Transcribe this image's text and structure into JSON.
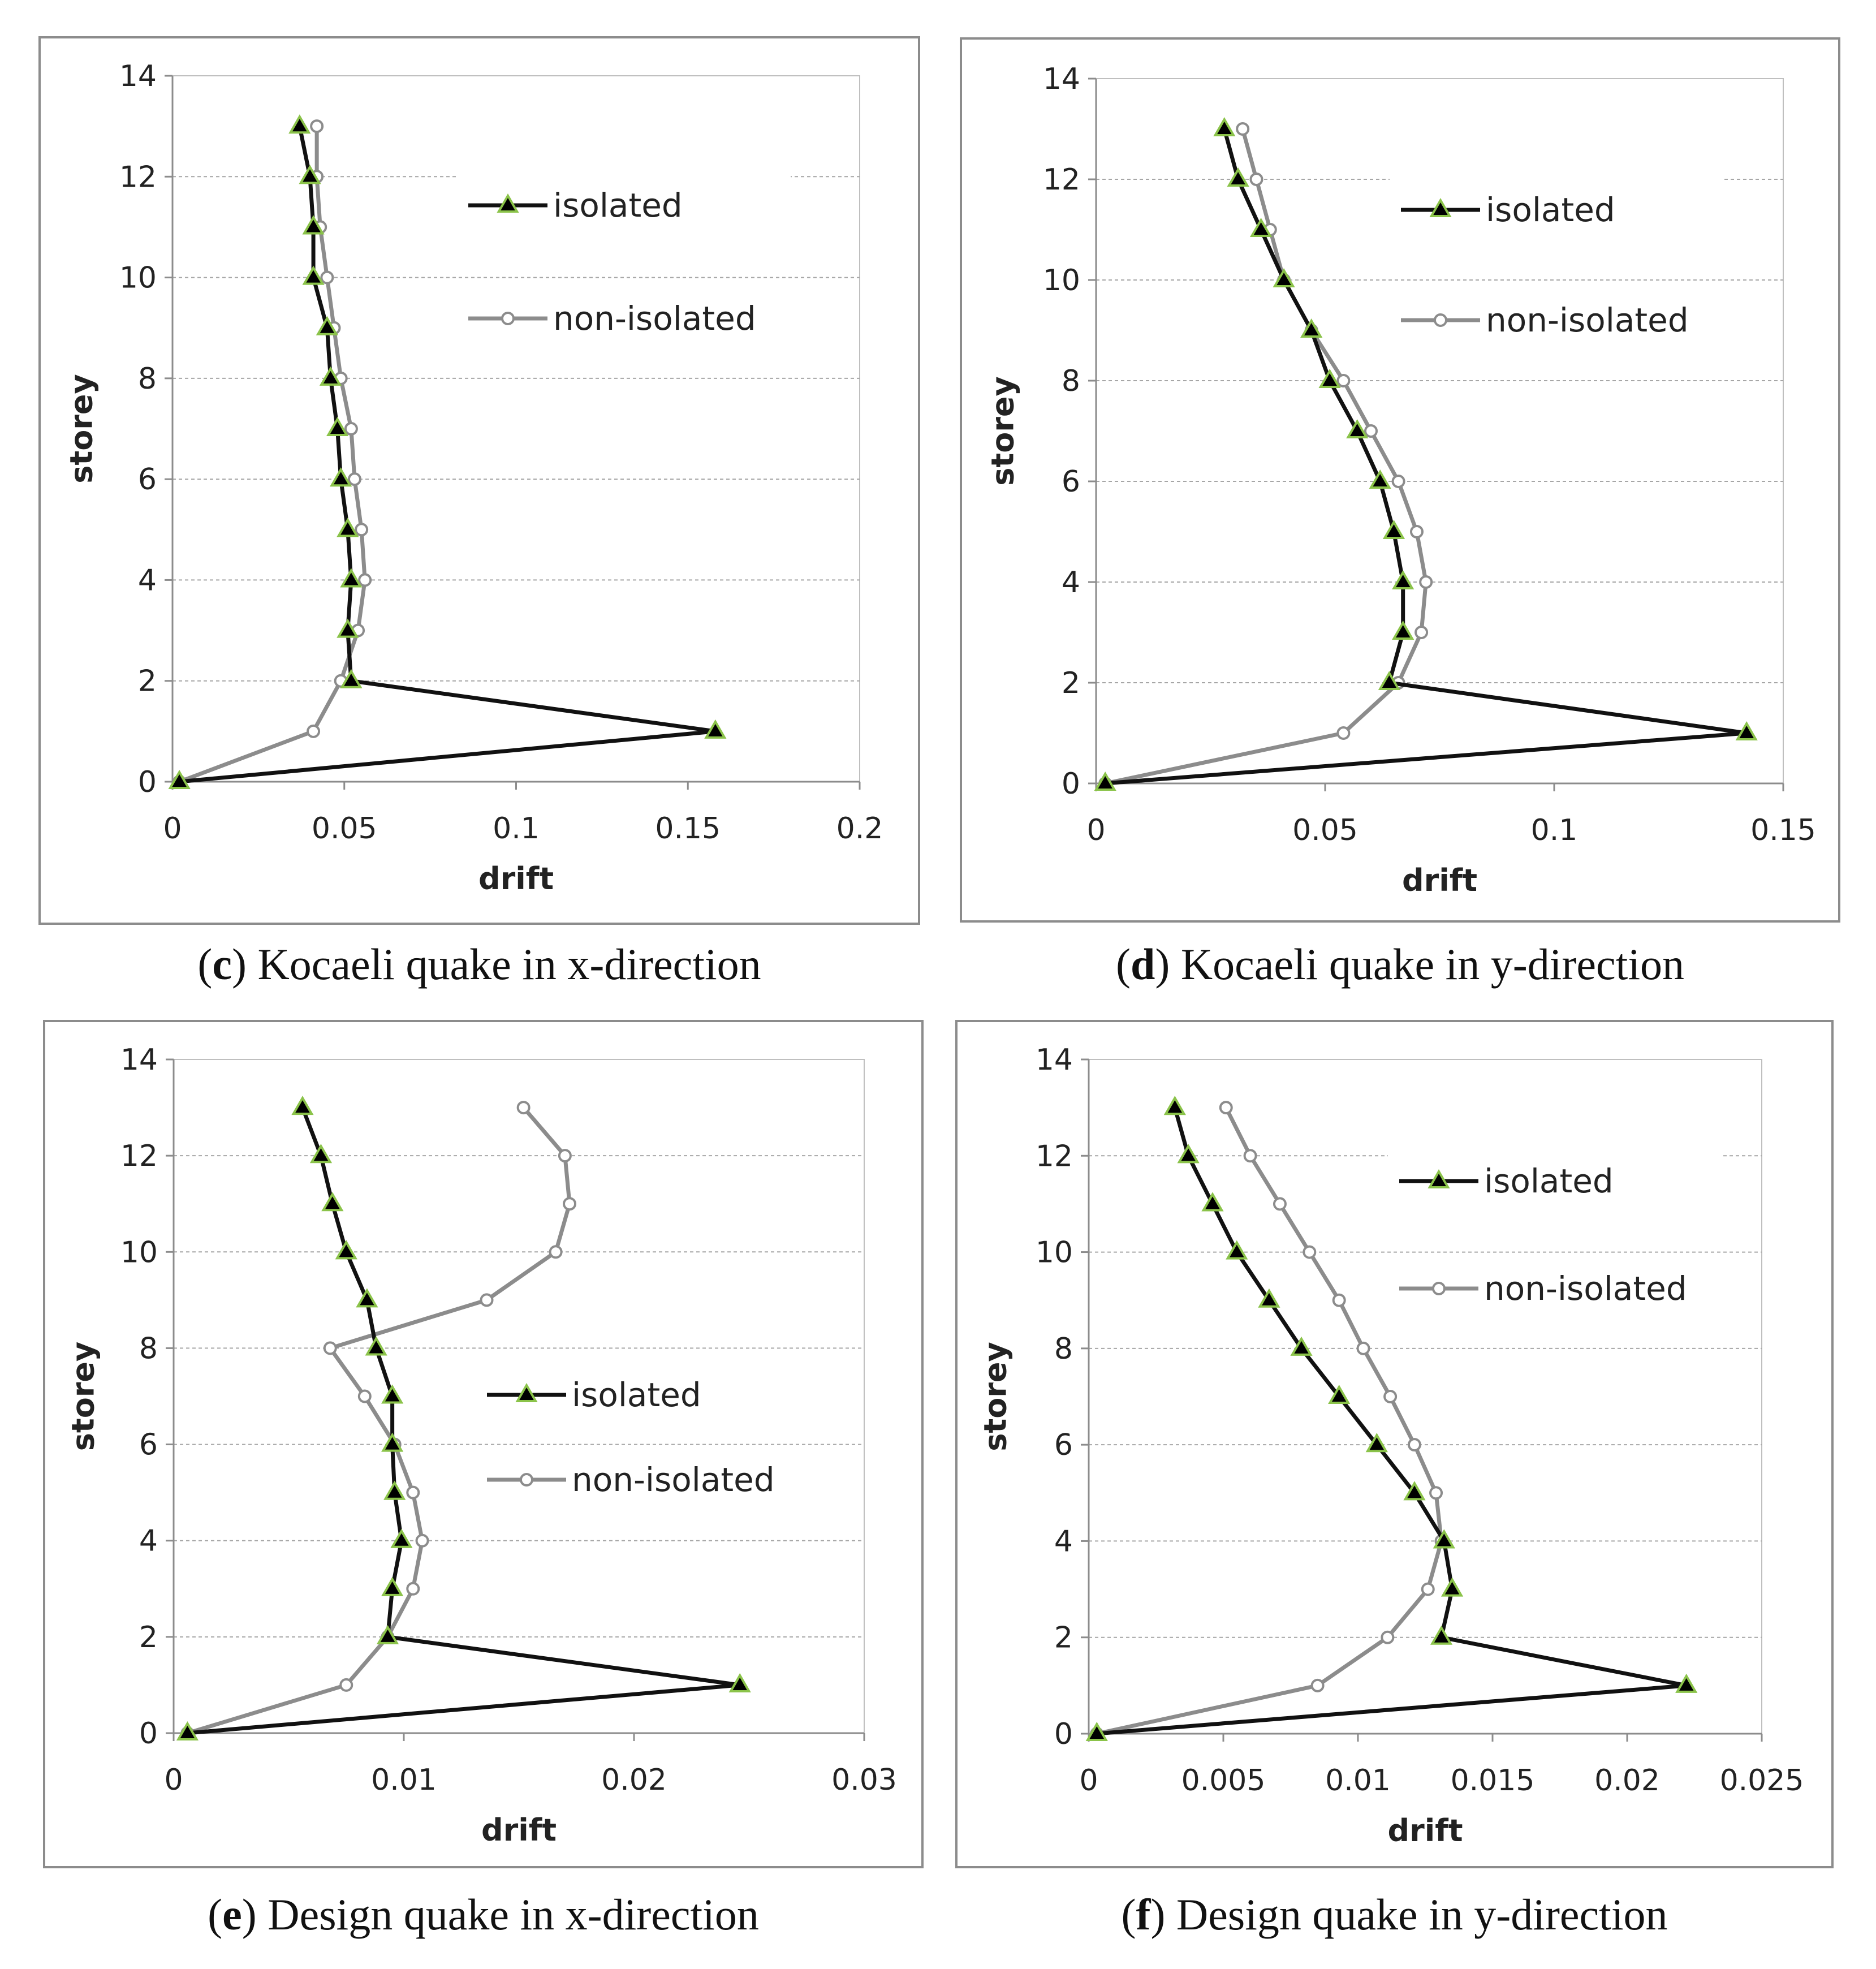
{
  "colors": {
    "isolated_line": "#111111",
    "isolated_marker": "#000000",
    "isolated_marker_edge": "#8bc34a",
    "nonisolated_line": "#8c8c8c",
    "nonisolated_marker": "#ffffff",
    "grid": "#a6a6a6",
    "axis": "#8c8c8c",
    "frame": "#8c8c8c"
  },
  "panels": [
    {
      "letter": "c",
      "caption": "Kocaeli quake in x-direction"
    },
    {
      "letter": "d",
      "caption": "Kocaeli quake in y-direction"
    },
    {
      "letter": "e",
      "caption": "Design quake in x-direction"
    },
    {
      "letter": "f",
      "caption": "Design quake in y-direction"
    }
  ],
  "chart_data": [
    {
      "type": "line",
      "xlabel": "drift",
      "ylabel": "storey",
      "xlim": [
        0,
        0.2
      ],
      "ylim": [
        0,
        14
      ],
      "xticks": [
        0,
        0.05,
        0.1,
        0.15,
        0.2
      ],
      "xtick_labels": [
        "0",
        "0.05",
        "0.1",
        "0.15",
        "0.2"
      ],
      "yticks": [
        0,
        2,
        4,
        6,
        8,
        10,
        12,
        14
      ],
      "ytick_labels": [
        "0",
        "2",
        "4",
        "6",
        "8",
        "10",
        "12",
        "14"
      ],
      "grid": true,
      "legend_position": "upper-right",
      "series": [
        {
          "name": "isolated",
          "marker": "triangle",
          "x": [
            0.002,
            0.158,
            0.052,
            0.051,
            0.052,
            0.051,
            0.049,
            0.048,
            0.046,
            0.045,
            0.041,
            0.041,
            0.04,
            0.037
          ],
          "y": [
            0,
            1,
            2,
            3,
            4,
            5,
            6,
            7,
            8,
            9,
            10,
            11,
            12,
            13
          ]
        },
        {
          "name": "non-isolated",
          "marker": "circle",
          "x": [
            0.002,
            0.041,
            0.049,
            0.054,
            0.056,
            0.055,
            0.053,
            0.052,
            0.049,
            0.047,
            0.045,
            0.043,
            0.042,
            0.042
          ],
          "y": [
            0,
            1,
            2,
            3,
            4,
            5,
            6,
            7,
            8,
            9,
            10,
            11,
            12,
            13
          ]
        }
      ]
    },
    {
      "type": "line",
      "xlabel": "drift",
      "ylabel": "storey",
      "xlim": [
        0,
        0.15
      ],
      "ylim": [
        0,
        14
      ],
      "xticks": [
        0,
        0.05,
        0.1,
        0.15
      ],
      "xtick_labels": [
        "0",
        "0.05",
        "0.1",
        "0.15"
      ],
      "yticks": [
        0,
        2,
        4,
        6,
        8,
        10,
        12,
        14
      ],
      "ytick_labels": [
        "0",
        "2",
        "4",
        "6",
        "8",
        "10",
        "12",
        "14"
      ],
      "grid": true,
      "legend_position": "upper-right",
      "series": [
        {
          "name": "isolated",
          "marker": "triangle",
          "x": [
            0.002,
            0.142,
            0.064,
            0.067,
            0.067,
            0.065,
            0.062,
            0.057,
            0.051,
            0.047,
            0.041,
            0.036,
            0.031,
            0.028
          ],
          "y": [
            0,
            1,
            2,
            3,
            4,
            5,
            6,
            7,
            8,
            9,
            10,
            11,
            12,
            13
          ]
        },
        {
          "name": "non-isolated",
          "marker": "circle",
          "x": [
            0.002,
            0.054,
            0.066,
            0.071,
            0.072,
            0.07,
            0.066,
            0.06,
            0.054,
            0.047,
            0.041,
            0.038,
            0.035,
            0.032
          ],
          "y": [
            0,
            1,
            2,
            3,
            4,
            5,
            6,
            7,
            8,
            9,
            10,
            11,
            12,
            13
          ]
        }
      ]
    },
    {
      "type": "line",
      "xlabel": "drift",
      "ylabel": "storey",
      "xlim": [
        0,
        0.03
      ],
      "ylim": [
        0,
        14
      ],
      "xticks": [
        0,
        0.01,
        0.02,
        0.03
      ],
      "xtick_labels": [
        "0",
        "0.01",
        "0.02",
        "0.03"
      ],
      "yticks": [
        0,
        2,
        4,
        6,
        8,
        10,
        12,
        14
      ],
      "ytick_labels": [
        "0",
        "2",
        "4",
        "6",
        "8",
        "10",
        "12",
        "14"
      ],
      "grid": true,
      "legend_position": "center-right",
      "series": [
        {
          "name": "isolated",
          "marker": "triangle",
          "x": [
            0.0006,
            0.0246,
            0.0093,
            0.0095,
            0.0099,
            0.0096,
            0.0095,
            0.0095,
            0.0088,
            0.0084,
            0.0075,
            0.0069,
            0.0064,
            0.0056
          ],
          "y": [
            0,
            1,
            2,
            3,
            4,
            5,
            6,
            7,
            8,
            9,
            10,
            11,
            12,
            13
          ]
        },
        {
          "name": "non-isolated",
          "marker": "circle",
          "x": [
            0.0006,
            0.0075,
            0.0093,
            0.0104,
            0.0108,
            0.0104,
            0.0096,
            0.0083,
            0.0068,
            0.0136,
            0.0166,
            0.0172,
            0.017,
            0.0152
          ],
          "y": [
            0,
            1,
            2,
            3,
            4,
            5,
            6,
            7,
            8,
            9,
            10,
            11,
            12,
            13
          ]
        }
      ]
    },
    {
      "type": "line",
      "xlabel": "drift",
      "ylabel": "storey",
      "xlim": [
        0,
        0.025
      ],
      "ylim": [
        0,
        14
      ],
      "xticks": [
        0,
        0.005,
        0.01,
        0.015,
        0.02,
        0.025
      ],
      "xtick_labels": [
        "0",
        "0.005",
        "0.01",
        "0.015",
        "0.02",
        "0.025"
      ],
      "yticks": [
        0,
        2,
        4,
        6,
        8,
        10,
        12,
        14
      ],
      "ytick_labels": [
        "0",
        "2",
        "4",
        "6",
        "8",
        "10",
        "12",
        "14"
      ],
      "grid": true,
      "legend_position": "upper-right",
      "series": [
        {
          "name": "isolated",
          "marker": "triangle",
          "x": [
            0.0003,
            0.0222,
            0.0131,
            0.0135,
            0.0132,
            0.0121,
            0.0107,
            0.0093,
            0.0079,
            0.0067,
            0.0055,
            0.0046,
            0.0037,
            0.0032
          ],
          "y": [
            0,
            1,
            2,
            3,
            4,
            5,
            6,
            7,
            8,
            9,
            10,
            11,
            12,
            13
          ]
        },
        {
          "name": "non-isolated",
          "marker": "circle",
          "x": [
            0.0003,
            0.0085,
            0.0111,
            0.0126,
            0.0131,
            0.0129,
            0.0121,
            0.0112,
            0.0102,
            0.0093,
            0.0082,
            0.0071,
            0.006,
            0.0051
          ],
          "y": [
            0,
            1,
            2,
            3,
            4,
            5,
            6,
            7,
            8,
            9,
            10,
            11,
            12,
            13
          ]
        }
      ]
    }
  ]
}
